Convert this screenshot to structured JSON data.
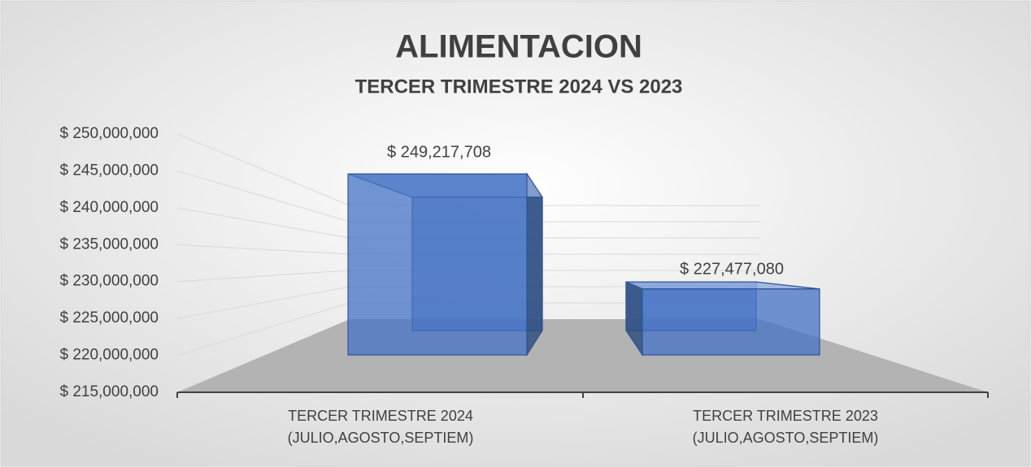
{
  "chart_data": {
    "type": "bar3d",
    "title": "ALIMENTACION",
    "subtitle": "TERCER TRIMESTRE 2024 VS 2023",
    "categories": [
      "TERCER TRIMESTRE 2024\n(JULIO,AGOSTO,SEPTIEM)",
      "TERCER TRIMESTRE 2023\n(JULIO,AGOSTO,SEPTIEM)"
    ],
    "values": [
      249217708,
      227477080
    ],
    "value_labels": [
      "$ 249,217,708",
      "$ 227,477,080"
    ],
    "color": "#4472c4",
    "ylim": [
      215000000,
      250000000
    ],
    "yticks": [
      {
        "value": 215000000,
        "label": "$ 215,000,000"
      },
      {
        "value": 220000000,
        "label": "$ 220,000,000"
      },
      {
        "value": 225000000,
        "label": "$ 225,000,000"
      },
      {
        "value": 230000000,
        "label": "$ 230,000,000"
      },
      {
        "value": 235000000,
        "label": "$ 235,000,000"
      },
      {
        "value": 240000000,
        "label": "$ 240,000,000"
      },
      {
        "value": 245000000,
        "label": "$ 245,000,000"
      },
      {
        "value": 250000000,
        "label": "$ 250,000,000"
      }
    ],
    "grid": true
  }
}
